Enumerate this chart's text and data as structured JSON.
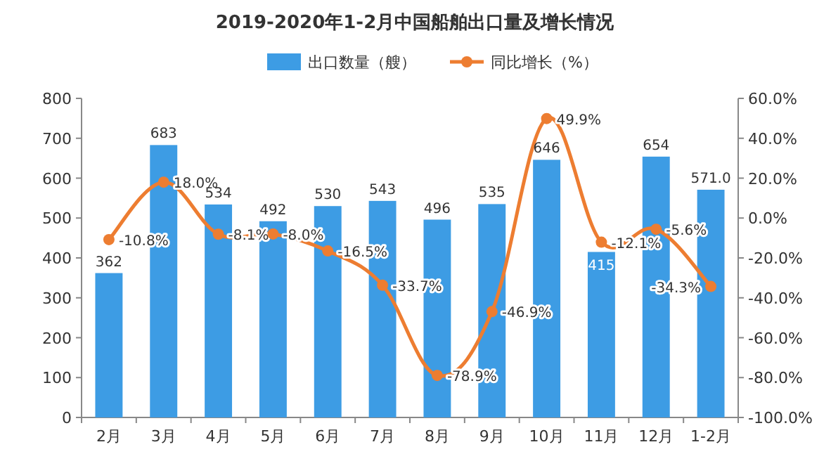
{
  "chart_data": {
    "type": "bar",
    "title": "2019-2020年1-2月中国船舶出口量及增长情况",
    "categories": [
      "2月",
      "3月",
      "4月",
      "5月",
      "6月",
      "7月",
      "8月",
      "9月",
      "10月",
      "11月",
      "12月",
      "1-2月"
    ],
    "series": [
      {
        "name": "出口数量（艘）",
        "color": "#3d9ce4",
        "values": [
          362,
          683,
          534,
          492,
          530,
          543,
          496,
          535,
          646,
          415,
          654,
          571.0
        ],
        "value_labels": [
          "362",
          "683",
          "534",
          "492",
          "530",
          "543",
          "496",
          "535",
          "646",
          "415",
          "654",
          "571.0"
        ]
      },
      {
        "name": "同比增长（%）",
        "type": "line",
        "axis": "y2",
        "color": "#ed7d31",
        "marker": "circle",
        "values": [
          -10.8,
          18.0,
          -8.1,
          -8.0,
          -16.5,
          -33.7,
          -78.9,
          -46.9,
          49.9,
          -12.1,
          -5.6,
          -34.3
        ],
        "value_labels": [
          "-10.8%",
          "18.0%",
          "-8.1%",
          "-8.0%",
          "-16.5%",
          "-33.7%",
          "-78.9%",
          "-46.9%",
          "49.9%",
          "-12.1%",
          "-5.6%",
          "-34.3%"
        ]
      }
    ],
    "ylim": [
      0,
      800
    ],
    "yticks": [
      0,
      100,
      200,
      300,
      400,
      500,
      600,
      700,
      800
    ],
    "y2lim": [
      -100,
      60
    ],
    "y2ticks": [
      {
        "value": -100,
        "label": "-100.0%"
      },
      {
        "value": -80,
        "label": "-80.0%"
      },
      {
        "value": -60,
        "label": "-60.0%"
      },
      {
        "value": -40,
        "label": "-40.0%"
      },
      {
        "value": -20,
        "label": "-20.0%"
      },
      {
        "value": 0,
        "label": "0.0%"
      },
      {
        "value": 20,
        "label": "20.0%"
      },
      {
        "value": 40,
        "label": "40.0%"
      },
      {
        "value": 60,
        "label": "60.0%"
      }
    ],
    "legend": "top"
  }
}
